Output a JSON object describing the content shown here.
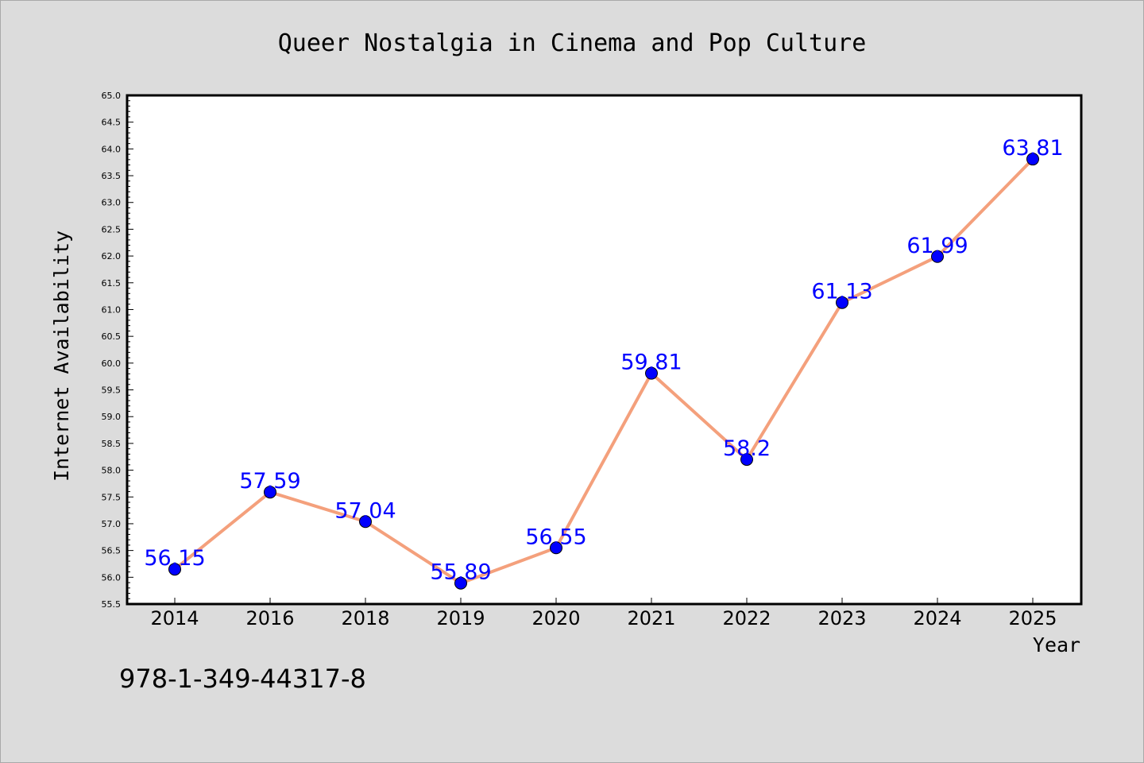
{
  "chart_data": {
    "type": "line",
    "title": "Queer Nostalgia in Cinema and Pop Culture",
    "xlabel": "Year",
    "ylabel": "Internet Availability",
    "categories": [
      "2014",
      "2016",
      "2018",
      "2019",
      "2020",
      "2021",
      "2022",
      "2023",
      "2024",
      "2025"
    ],
    "values": [
      56.15,
      57.59,
      57.04,
      55.89,
      56.55,
      59.81,
      58.2,
      61.13,
      61.99,
      63.81
    ],
    "data_labels": [
      "56.15",
      "57.59",
      "57.04",
      "55.89",
      "56.55",
      "59.81",
      "58.2",
      "61.13",
      "61.99",
      "63.81"
    ],
    "ylim": [
      55.5,
      65.0
    ],
    "yticks": [
      "55.5",
      "56.0",
      "56.5",
      "57.0",
      "57.5",
      "58.0",
      "58.5",
      "59.0",
      "59.5",
      "60.0",
      "60.5",
      "61.0",
      "61.5",
      "62.0",
      "62.5",
      "63.0",
      "63.5",
      "64.0",
      "64.5",
      "65.0"
    ],
    "grid": false,
    "line_color": "#f4a07c",
    "marker_color": "#0000ff",
    "label_color": "#0000ff"
  },
  "annotation": {
    "isbn": "978-1-349-44317-8"
  }
}
